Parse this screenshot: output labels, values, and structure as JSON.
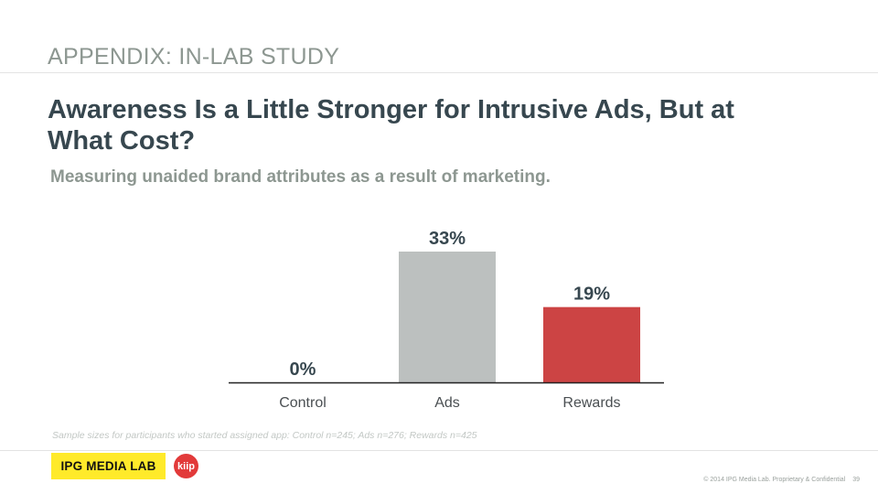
{
  "header": {
    "section": "APPENDIX: IN-LAB STUDY",
    "title": "Awareness Is a Little Stronger for Intrusive Ads, But at What Cost?",
    "subtitle": "Measuring unaided brand attributes as a result of marketing."
  },
  "chart_data": {
    "type": "bar",
    "categories": [
      "Control",
      "Ads",
      "Rewards"
    ],
    "values": [
      0,
      33,
      19
    ],
    "value_labels": [
      "0%",
      "33%",
      "19%"
    ],
    "colors": [
      "#bcc0bf",
      "#bcc0bf",
      "#cc4444"
    ],
    "grid": false,
    "legend": "none"
  },
  "note": "Sample sizes for participants who started assigned app: Control n=245; Ads n=276; Rewards n=425",
  "logos": {
    "ipg": "IPG MEDIA LAB",
    "kiip": "kiip"
  },
  "footer": {
    "copyright": "© 2014 IPG Media Lab. Proprietary & Confidential",
    "page": "39"
  }
}
